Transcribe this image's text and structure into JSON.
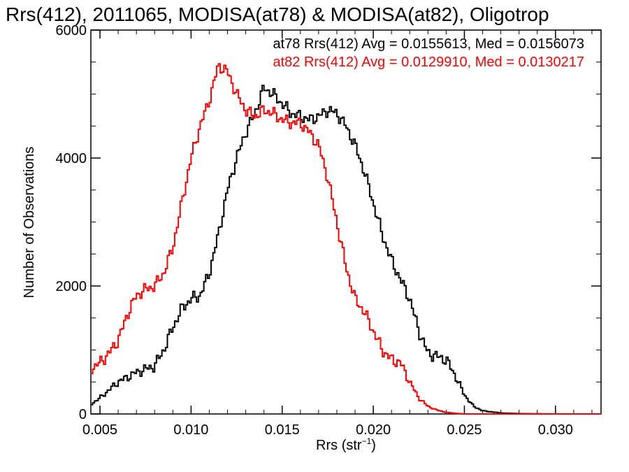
{
  "chart_data": {
    "type": "line",
    "title": "Rrs(412), 2011065, MODISA(at78) & MODISA(at82), Oligotrop",
    "xlabel_main": "Rrs (str",
    "xlabel_sup": "−1",
    "xlabel_tail": ")",
    "ylabel": "Number of Observations",
    "xlim": [
      0.0045,
      0.0325
    ],
    "ylim": [
      0,
      6000
    ],
    "x_ticks": [
      0.005,
      0.01,
      0.015,
      0.02,
      0.025,
      0.03
    ],
    "x_tick_labels": [
      "0.005",
      "0.010",
      "0.015",
      "0.020",
      "0.025",
      "0.030"
    ],
    "y_ticks": [
      0,
      2000,
      4000,
      6000
    ],
    "y_tick_labels": [
      "0",
      "2000",
      "4000",
      "6000"
    ],
    "grid": false,
    "legend_position": "top-right",
    "series": [
      {
        "name": "at78",
        "legend": "at78 Rrs(412) Avg = 0.0155613, Med = 0.0156073",
        "color": "#000000",
        "step": true,
        "points": [
          [
            0.0045,
            150
          ],
          [
            0.005,
            250
          ],
          [
            0.006,
            500
          ],
          [
            0.007,
            650
          ],
          [
            0.008,
            750
          ],
          [
            0.0085,
            1000
          ],
          [
            0.009,
            1350
          ],
          [
            0.0095,
            1650
          ],
          [
            0.01,
            1800
          ],
          [
            0.0105,
            1850
          ],
          [
            0.011,
            2200
          ],
          [
            0.0115,
            2800
          ],
          [
            0.012,
            3500
          ],
          [
            0.0125,
            4000
          ],
          [
            0.013,
            4400
          ],
          [
            0.0135,
            4700
          ],
          [
            0.014,
            5100
          ],
          [
            0.0145,
            5000
          ],
          [
            0.015,
            4850
          ],
          [
            0.0155,
            4700
          ],
          [
            0.016,
            4650
          ],
          [
            0.0165,
            4600
          ],
          [
            0.017,
            4650
          ],
          [
            0.0175,
            4750
          ],
          [
            0.018,
            4700
          ],
          [
            0.0185,
            4500
          ],
          [
            0.019,
            4200
          ],
          [
            0.0195,
            3800
          ],
          [
            0.02,
            3300
          ],
          [
            0.0205,
            2800
          ],
          [
            0.021,
            2400
          ],
          [
            0.0215,
            2100
          ],
          [
            0.022,
            1800
          ],
          [
            0.0225,
            1300
          ],
          [
            0.023,
            950
          ],
          [
            0.0235,
            900
          ],
          [
            0.024,
            850
          ],
          [
            0.0245,
            600
          ],
          [
            0.025,
            300
          ],
          [
            0.0255,
            120
          ],
          [
            0.026,
            50
          ],
          [
            0.027,
            15
          ],
          [
            0.028,
            5
          ],
          [
            0.03,
            0
          ],
          [
            0.0325,
            0
          ]
        ]
      },
      {
        "name": "at82",
        "legend": "at82 Rrs(412) Avg = 0.0129910, Med = 0.0130217",
        "color": "#ff0000",
        "step": true,
        "points": [
          [
            0.0045,
            700
          ],
          [
            0.005,
            800
          ],
          [
            0.0055,
            950
          ],
          [
            0.006,
            1150
          ],
          [
            0.0065,
            1550
          ],
          [
            0.007,
            1850
          ],
          [
            0.0075,
            1950
          ],
          [
            0.008,
            2000
          ],
          [
            0.0085,
            2200
          ],
          [
            0.009,
            2600
          ],
          [
            0.0095,
            3300
          ],
          [
            0.01,
            4000
          ],
          [
            0.0105,
            4500
          ],
          [
            0.011,
            4900
          ],
          [
            0.0115,
            5450
          ],
          [
            0.012,
            5350
          ],
          [
            0.0125,
            5000
          ],
          [
            0.013,
            4750
          ],
          [
            0.0135,
            4650
          ],
          [
            0.014,
            4750
          ],
          [
            0.0145,
            4700
          ],
          [
            0.015,
            4600
          ],
          [
            0.0155,
            4550
          ],
          [
            0.016,
            4550
          ],
          [
            0.0165,
            4400
          ],
          [
            0.017,
            4200
          ],
          [
            0.0175,
            3700
          ],
          [
            0.018,
            3000
          ],
          [
            0.0185,
            2300
          ],
          [
            0.019,
            1800
          ],
          [
            0.0195,
            1600
          ],
          [
            0.02,
            1300
          ],
          [
            0.0205,
            1000
          ],
          [
            0.021,
            850
          ],
          [
            0.0215,
            800
          ],
          [
            0.022,
            500
          ],
          [
            0.0225,
            250
          ],
          [
            0.023,
            120
          ],
          [
            0.0235,
            60
          ],
          [
            0.024,
            25
          ],
          [
            0.0245,
            10
          ],
          [
            0.025,
            0
          ],
          [
            0.0325,
            0
          ]
        ]
      }
    ]
  }
}
